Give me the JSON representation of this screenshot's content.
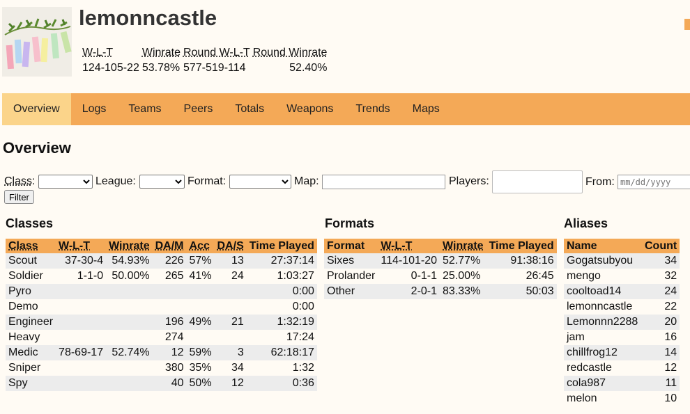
{
  "player": {
    "name": "lemonncastle",
    "avatar_icon": "tanabata-streamers-icon",
    "stats_headers": [
      "W-L-T",
      "Winrate",
      "Round W-L-T",
      "Round Winrate"
    ],
    "stats_values": [
      "124-105-22",
      "53.78%",
      "577-519-114",
      "52.40%"
    ]
  },
  "nav": {
    "tabs": [
      "Overview",
      "Logs",
      "Teams",
      "Peers",
      "Totals",
      "Weapons",
      "Trends",
      "Maps"
    ],
    "active": "Overview"
  },
  "page": {
    "heading": "Overview"
  },
  "filters": {
    "class_label": "Class",
    "league_label": "League:",
    "format_label": "Format:",
    "map_label": "Map:",
    "players_label": "Players:",
    "from_label": "From:",
    "date_placeholder": "mm/dd/yyyy",
    "button_label": "Filter"
  },
  "classes": {
    "title": "Classes",
    "headers": [
      "Class",
      "W-L-T",
      "Winrate",
      "DA/M",
      "Acc",
      "DA/S",
      "Time Played"
    ],
    "rows": [
      [
        "Scout",
        "37-30-4",
        "54.93%",
        "226",
        "57%",
        "13",
        "27:37:14"
      ],
      [
        "Soldier",
        "1-1-0",
        "50.00%",
        "265",
        "41%",
        "24",
        "1:03:27"
      ],
      [
        "Pyro",
        "",
        "",
        "",
        "",
        "",
        "0:00"
      ],
      [
        "Demo",
        "",
        "",
        "",
        "",
        "",
        "0:00"
      ],
      [
        "Engineer",
        "",
        "",
        "196",
        "49%",
        "21",
        "1:32:19"
      ],
      [
        "Heavy",
        "",
        "",
        "274",
        "",
        "",
        "17:24"
      ],
      [
        "Medic",
        "78-69-17",
        "52.74%",
        "12",
        "59%",
        "3",
        "62:18:17"
      ],
      [
        "Sniper",
        "",
        "",
        "380",
        "35%",
        "34",
        "1:32"
      ],
      [
        "Spy",
        "",
        "",
        "40",
        "50%",
        "12",
        "0:36"
      ]
    ]
  },
  "formats": {
    "title": "Formats",
    "headers": [
      "Format",
      "W-L-T",
      "Winrate",
      "Time Played"
    ],
    "rows": [
      [
        "Sixes",
        "114-101-20",
        "52.77%",
        "91:38:16"
      ],
      [
        "Prolander",
        "0-1-1",
        "25.00%",
        "26:45"
      ],
      [
        "Other",
        "2-0-1",
        "83.33%",
        "50:03"
      ]
    ]
  },
  "aliases": {
    "title": "Aliases",
    "headers": [
      "Name",
      "Count"
    ],
    "rows": [
      [
        "Gogatsubyou",
        "34"
      ],
      [
        "mengo",
        "32"
      ],
      [
        "cooltoad14",
        "24"
      ],
      [
        "lemonncastle",
        "22"
      ],
      [
        "Lemonnn2288",
        "20"
      ],
      [
        "jam",
        "16"
      ],
      [
        "chillfrog12",
        "14"
      ],
      [
        "redcastle",
        "12"
      ],
      [
        "cola987",
        "11"
      ],
      [
        "melon",
        "10"
      ]
    ]
  }
}
